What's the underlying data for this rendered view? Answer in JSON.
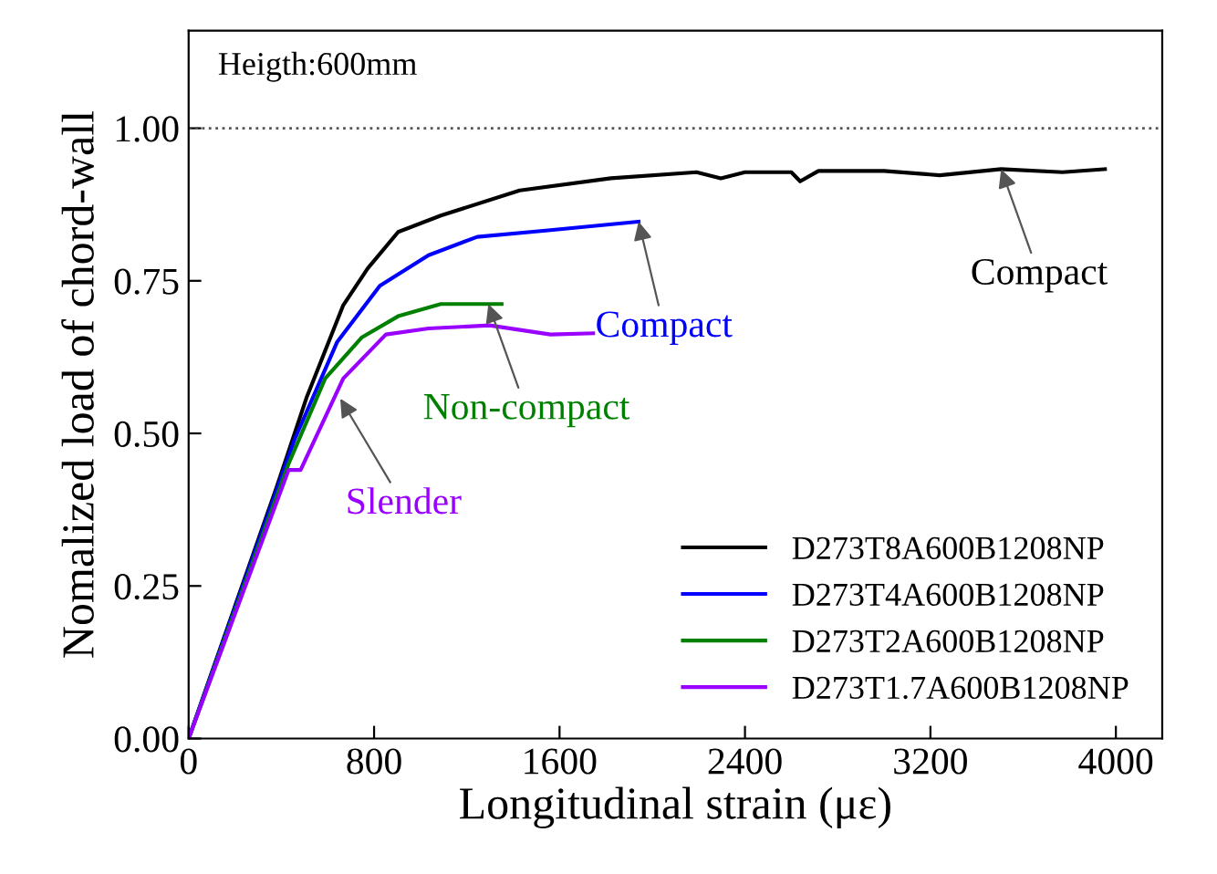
{
  "chart_data": {
    "type": "line",
    "xlabel": "Longitudinal strain (με)",
    "ylabel": "Nomalized load of chord-wall",
    "xlim": [
      0,
      4200
    ],
    "xticks": [
      0,
      800,
      1600,
      2400,
      3200,
      4000
    ],
    "ylim": [
      0,
      1.16
    ],
    "yticks": [
      {
        "value": 0,
        "label": "0.00"
      },
      {
        "value": 0.25,
        "label": "0.25"
      },
      {
        "value": 0.5,
        "label": "0.50"
      },
      {
        "value": 0.75,
        "label": "0.75"
      },
      {
        "value": 1.0,
        "label": "1.00"
      }
    ],
    "grid": false,
    "legend": "bottom right",
    "marker": "none",
    "line_style": "solid",
    "ref_lines": [
      {
        "axis": "y",
        "value": 1.0,
        "color": "#555555",
        "line_style": "dotted"
      }
    ],
    "series": [
      {
        "name": "D273T8A600B1208NP",
        "color": "#000000",
        "x": [
          0,
          378,
          510,
          667,
          772,
          904,
          1088,
          1428,
          1822,
          2191,
          2296,
          2400,
          2600,
          2638,
          2717,
          3000,
          3240,
          3505,
          3770,
          3953
        ],
        "values": [
          0,
          0.41,
          0.56,
          0.71,
          0.77,
          0.83,
          0.857,
          0.898,
          0.918,
          0.928,
          0.918,
          0.928,
          0.928,
          0.913,
          0.93,
          0.93,
          0.923,
          0.933,
          0.928,
          0.933
        ]
      },
      {
        "name": "D273T4A600B1208NP",
        "color": "#0000ff",
        "x": [
          0,
          457,
          641,
          825,
          1035,
          1245,
          1561,
          1941
        ],
        "values": [
          0,
          0.49,
          0.65,
          0.742,
          0.792,
          0.822,
          0.833,
          0.847
        ]
      },
      {
        "name": "D273T2A600B1208NP",
        "color": "#008000",
        "x": [
          0,
          431,
          589,
          746,
          904,
          1088,
          1350
        ],
        "values": [
          0,
          0.45,
          0.59,
          0.657,
          0.692,
          0.712,
          0.712
        ]
      },
      {
        "name": "D273T1.7A600B1208NP",
        "color": "#9900ff",
        "x": [
          0,
          431,
          483,
          667,
          851,
          1035,
          1298,
          1561,
          1745
        ],
        "values": [
          0,
          0.44,
          0.44,
          0.59,
          0.662,
          0.672,
          0.677,
          0.662,
          0.664
        ]
      }
    ],
    "annotations": [
      "Heigth:600mm",
      {
        "text": "Compact",
        "x": 3505,
        "y": 0.933
      },
      {
        "text": "Compact",
        "x": 1941,
        "y": 0.847
      },
      {
        "text": "Non-compact",
        "x": 1293,
        "y": 0.712
      },
      {
        "text": "Slender",
        "x": 654,
        "y": 0.557
      }
    ]
  }
}
